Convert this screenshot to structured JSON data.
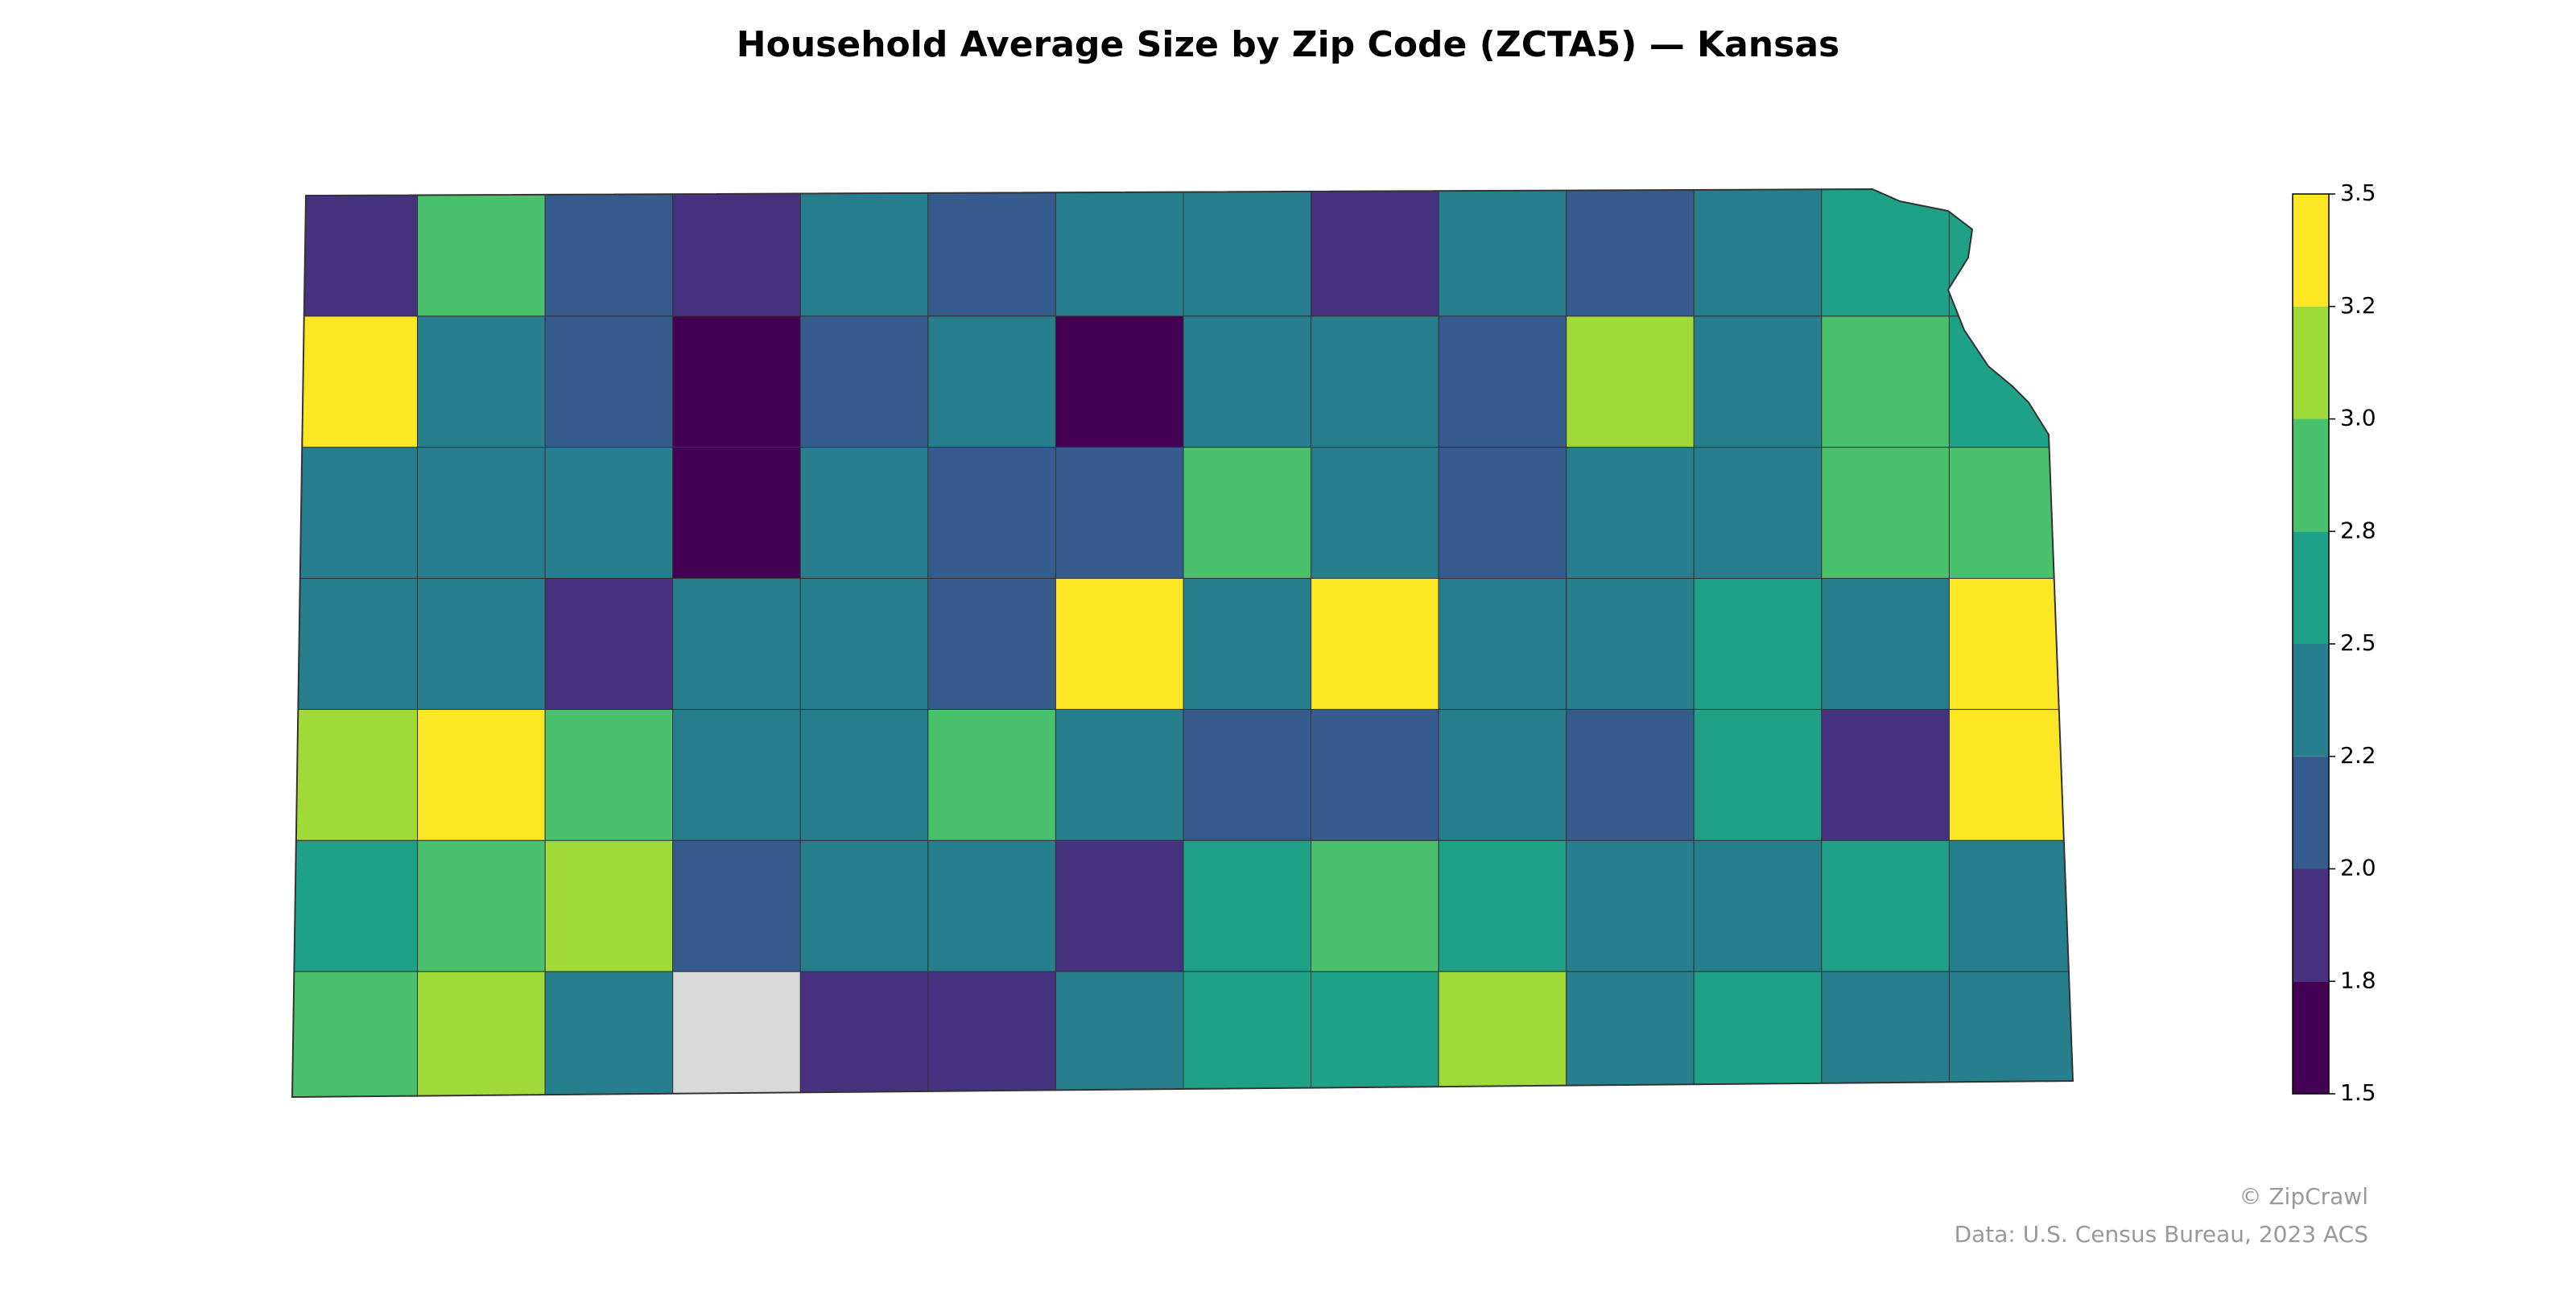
{
  "chart_data": {
    "type": "choropleth",
    "title": "Household Average Size by Zip Code (ZCTA5) — Kansas",
    "grid_columns": 14,
    "values": [
      1.9,
      2.9,
      2.1,
      1.9,
      2.3,
      2.1,
      2.2,
      2.4,
      1.9,
      2.3,
      2.1,
      2.3,
      2.6,
      2.6,
      3.3,
      2.2,
      2.1,
      1.7,
      2.1,
      2.2,
      1.7,
      2.2,
      2.2,
      2.1,
      3.0,
      2.4,
      2.8,
      2.6,
      2.2,
      2.3,
      2.2,
      1.7,
      2.3,
      2.1,
      2.0,
      2.8,
      2.3,
      2.1,
      2.2,
      2.4,
      2.9,
      2.9,
      2.3,
      2.3,
      1.9,
      2.3,
      2.2,
      2.0,
      3.4,
      2.3,
      3.4,
      2.2,
      2.2,
      2.5,
      2.4,
      3.3,
      3.1,
      3.3,
      2.9,
      2.2,
      2.3,
      2.9,
      2.3,
      2.1,
      2.1,
      2.3,
      2.1,
      2.5,
      1.9,
      3.4,
      2.6,
      2.9,
      3.1,
      2.1,
      2.2,
      2.2,
      1.9,
      2.7,
      2.9,
      2.6,
      2.2,
      2.3,
      2.5,
      2.4,
      2.9,
      3.1,
      2.3,
      null,
      1.9,
      1.8,
      2.2,
      2.5,
      2.7,
      3.1,
      2.2,
      2.6,
      2.2,
      2.4
    ],
    "missing_color": "#d9d9d9",
    "colorbar": {
      "bounds": [
        1.5,
        1.8,
        2.0,
        2.2,
        2.5,
        2.8,
        3.0,
        3.2,
        3.5
      ],
      "colors": [
        "#440154",
        "#46327e",
        "#365c8d",
        "#277f8e",
        "#1fa187",
        "#4ac16d",
        "#a0da39",
        "#fde725"
      ],
      "ylim": [
        1.5,
        3.5
      ],
      "yticks": [
        1.5,
        1.8,
        {
          "value": 2.0,
          "label": "2.0"
        },
        2.2,
        2.5,
        2.8,
        {
          "value": 3.0,
          "label": "3.0"
        },
        3.2,
        3.5
      ]
    },
    "footer": [
      "© ZipCrawl",
      "Data: U.S. Census Bureau, 2023 ACS"
    ]
  }
}
